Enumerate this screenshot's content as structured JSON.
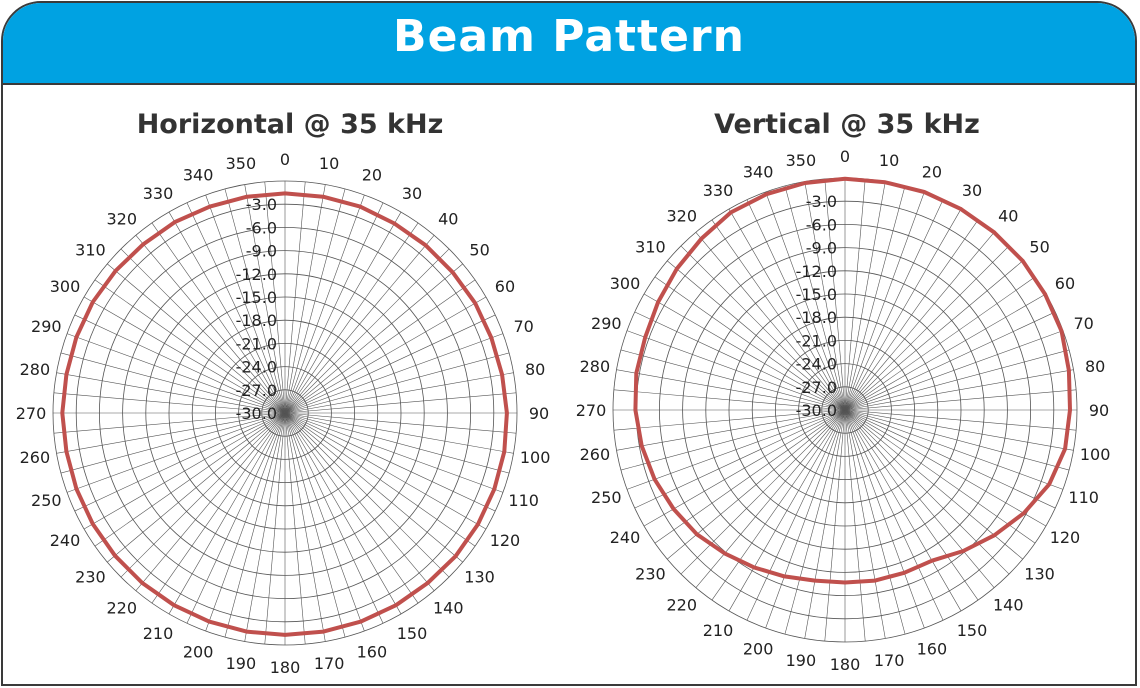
{
  "banner": {
    "title": "Beam Pattern",
    "color": "#00a2e2"
  },
  "trace_color": "#c0504d",
  "chart_data": [
    {
      "type": "polar-line",
      "title": "Horizontal @ 35 kHz",
      "angular_ticks": [
        "0",
        "10",
        "20",
        "30",
        "40",
        "50",
        "60",
        "70",
        "80",
        "90",
        "100",
        "110",
        "120",
        "130",
        "140",
        "150",
        "160",
        "170",
        "180",
        "190",
        "200",
        "210",
        "220",
        "230",
        "240",
        "250",
        "260",
        "270",
        "280",
        "290",
        "300",
        "310",
        "320",
        "330",
        "340",
        "350"
      ],
      "radial_ticks": [
        "-3.0",
        "-6.0",
        "-9.0",
        "-12.0",
        "-15.0",
        "-18.0",
        "-21.0",
        "-24.0",
        "-27.0",
        "-30.0"
      ],
      "radial_range": [
        -30,
        0
      ],
      "series": [
        {
          "angles_deg": [
            0,
            10,
            20,
            30,
            40,
            50,
            60,
            70,
            80,
            90,
            100,
            110,
            120,
            130,
            140,
            150,
            160,
            170,
            180,
            190,
            200,
            210,
            220,
            230,
            240,
            250,
            260,
            270,
            280,
            290,
            300,
            310,
            320,
            330,
            340,
            350
          ],
          "values_db": [
            -1.6,
            -1.6,
            -1.6,
            -1.7,
            -1.7,
            -1.7,
            -1.6,
            -1.6,
            -1.5,
            -1.3,
            -1.2,
            -1.2,
            -1.2,
            -1.2,
            -1.3,
            -1.3,
            -1.3,
            -1.3,
            -1.3,
            -1.3,
            -1.3,
            -1.3,
            -1.3,
            -1.3,
            -1.3,
            -1.3,
            -1.3,
            -1.2,
            -1.3,
            -1.3,
            -1.3,
            -1.4,
            -1.5,
            -1.5,
            -1.6,
            -1.6
          ]
        }
      ]
    },
    {
      "type": "polar-line",
      "title": "Vertical @ 35 kHz",
      "angular_ticks": [
        "0",
        "10",
        "20",
        "30",
        "40",
        "50",
        "60",
        "70",
        "80",
        "90",
        "100",
        "110",
        "120",
        "130",
        "140",
        "150",
        "160",
        "170",
        "180",
        "190",
        "200",
        "210",
        "220",
        "230",
        "240",
        "250",
        "260",
        "270",
        "280",
        "290",
        "300",
        "310",
        "320",
        "330",
        "340",
        "350"
      ],
      "radial_ticks": [
        "-3.0",
        "-6.0",
        "-9.0",
        "-12.0",
        "-15.0",
        "-18.0",
        "-21.0",
        "-24.0",
        "-27.0",
        "-30.0"
      ],
      "radial_range": [
        -30,
        0
      ],
      "series": [
        {
          "angles_deg": [
            0,
            10,
            20,
            30,
            40,
            50,
            60,
            70,
            80,
            90,
            100,
            110,
            120,
            130,
            140,
            150,
            160,
            170,
            180,
            190,
            200,
            210,
            220,
            230,
            240,
            250,
            260,
            270,
            280,
            290,
            300,
            310,
            320,
            330,
            340,
            350
          ],
          "values_db": [
            -0.1,
            -0.1,
            0,
            0,
            0,
            0,
            -0.1,
            -0.2,
            -0.6,
            -0.9,
            -1.1,
            -1.9,
            -3.3,
            -4.8,
            -6.2,
            -7.5,
            -7.6,
            -7.6,
            -7.7,
            -7.6,
            -7.1,
            -6.5,
            -5.8,
            -5.0,
            -4.4,
            -3.8,
            -3.3,
            -2.9,
            -2.6,
            -2.5,
            -2.1,
            -1.6,
            -1.1,
            -0.5,
            -0.3,
            -0.2
          ]
        }
      ]
    }
  ]
}
